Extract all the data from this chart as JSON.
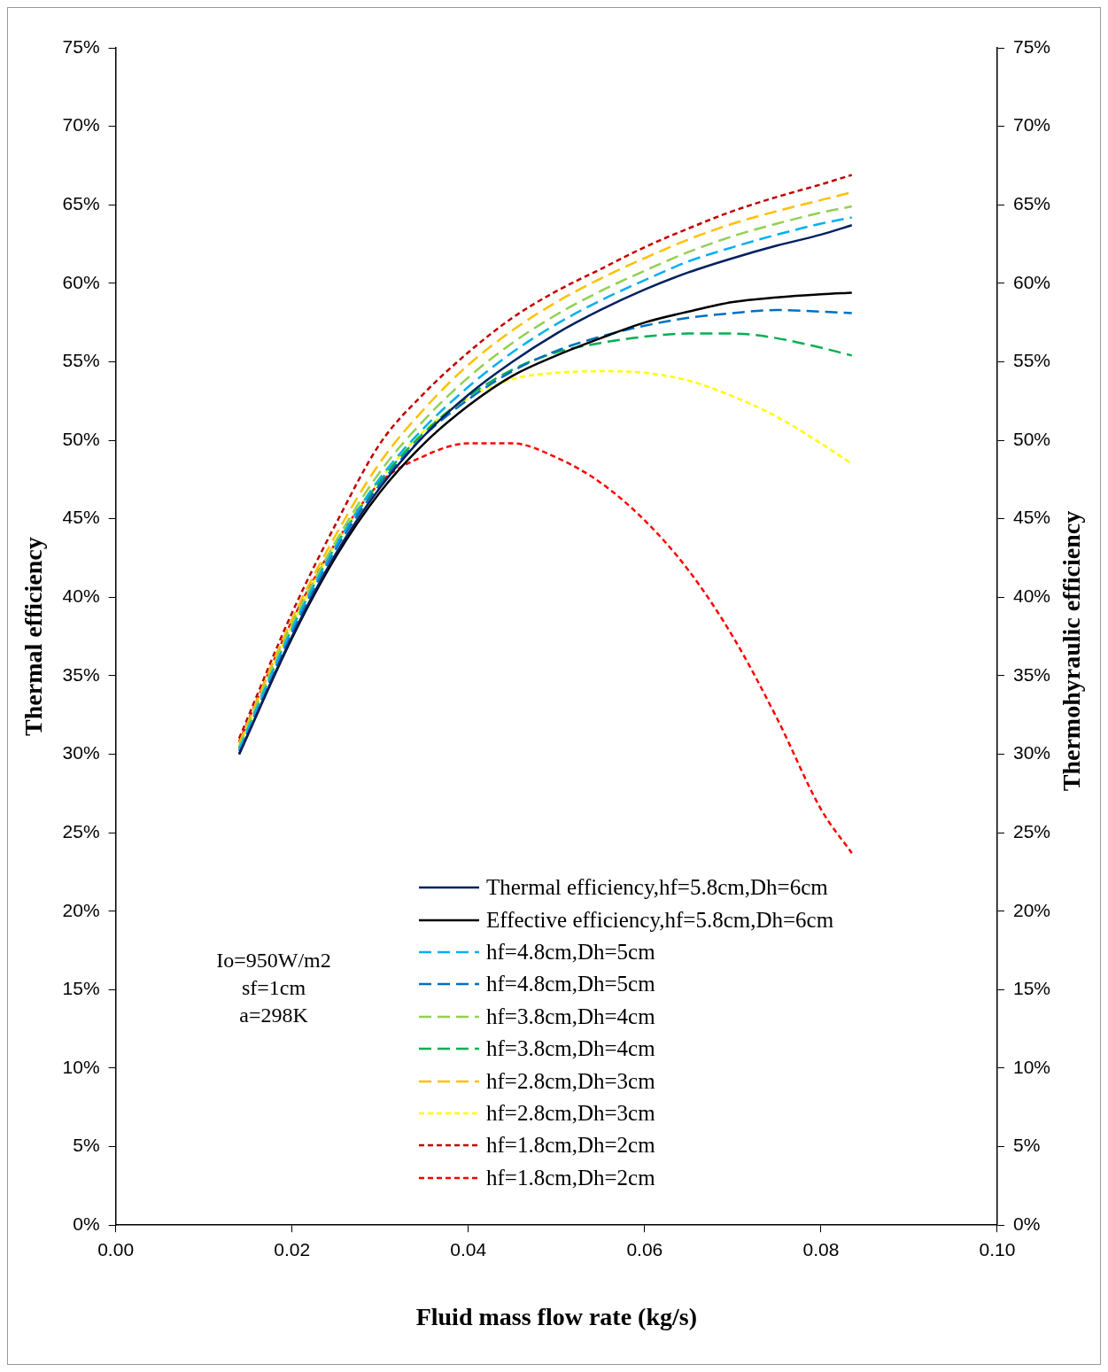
{
  "chart_data": {
    "type": "line",
    "xlabel": "Fluid mass flow rate (kg/s)",
    "ylabel": "Thermal efficiency",
    "y2label": "Thermohyraulic efficiency",
    "x": [
      0.014,
      0.02,
      0.025,
      0.03,
      0.035,
      0.04,
      0.045,
      0.05,
      0.055,
      0.06,
      0.065,
      0.07,
      0.075,
      0.08,
      0.0835
    ],
    "xlim": [
      0,
      0.1
    ],
    "xticks": [
      {
        "value": 0,
        "label": "0.00"
      },
      {
        "value": 0.02,
        "label": "0.02"
      },
      {
        "value": 0.04,
        "label": "0.04"
      },
      {
        "value": 0.06,
        "label": "0.06"
      },
      {
        "value": 0.08,
        "label": "0.08"
      },
      {
        "value": 0.1,
        "label": "0.10"
      }
    ],
    "ylim": [
      0,
      75
    ],
    "yticks": [
      {
        "value": 0,
        "label": "0%"
      },
      {
        "value": 5,
        "label": "5%"
      },
      {
        "value": 10,
        "label": "10%"
      },
      {
        "value": 15,
        "label": "15%"
      },
      {
        "value": 20,
        "label": "20%"
      },
      {
        "value": 25,
        "label": "25%"
      },
      {
        "value": 30,
        "label": "30%"
      },
      {
        "value": 35,
        "label": "35%"
      },
      {
        "value": 40,
        "label": "40%"
      },
      {
        "value": 45,
        "label": "45%"
      },
      {
        "value": 50,
        "label": "50%"
      },
      {
        "value": 55,
        "label": "55%"
      },
      {
        "value": 60,
        "label": "60%"
      },
      {
        "value": 65,
        "label": "65%"
      },
      {
        "value": 70,
        "label": "70%"
      },
      {
        "value": 75,
        "label": "75%"
      }
    ],
    "y2lim": [
      0,
      75
    ],
    "y2ticks": [
      {
        "value": 0,
        "label": "0%"
      },
      {
        "value": 5,
        "label": "5%"
      },
      {
        "value": 10,
        "label": "10%"
      },
      {
        "value": 15,
        "label": "15%"
      },
      {
        "value": 20,
        "label": "20%"
      },
      {
        "value": 25,
        "label": "25%"
      },
      {
        "value": 30,
        "label": "30%"
      },
      {
        "value": 35,
        "label": "35%"
      },
      {
        "value": 40,
        "label": "40%"
      },
      {
        "value": 45,
        "label": "45%"
      },
      {
        "value": 50,
        "label": "50%"
      },
      {
        "value": 55,
        "label": "55%"
      },
      {
        "value": 60,
        "label": "60%"
      },
      {
        "value": 65,
        "label": "65%"
      },
      {
        "value": 70,
        "label": "70%"
      },
      {
        "value": 75,
        "label": "75%"
      }
    ],
    "grid": false,
    "legend": "bottom right",
    "marker": "none",
    "annotations": [
      "Io=950W/m2",
      "sf=1cm",
      "a=298K"
    ],
    "series": [
      {
        "name": "Thermal efficiency,hf=5.8cm,Dh=6cm",
        "color": "#002060",
        "line_style": "solid",
        "values": [
          30.0,
          37.5,
          42.8,
          47.0,
          50.3,
          52.9,
          55.0,
          56.8,
          58.3,
          59.6,
          60.7,
          61.6,
          62.4,
          63.1,
          63.7
        ]
      },
      {
        "name": "Effective efficiency,hf=5.8cm,Dh=6cm",
        "color": "#000000",
        "line_style": "solid",
        "values": [
          30.0,
          37.4,
          42.6,
          46.7,
          49.8,
          52.2,
          54.1,
          55.4,
          56.5,
          57.5,
          58.2,
          58.8,
          59.1,
          59.3,
          59.4
        ]
      },
      {
        "name": "hf=4.8cm,Dh=5cm",
        "color": "#00b0f0",
        "line_style": "dashed",
        "values": [
          30.3,
          38.0,
          43.3,
          47.6,
          50.8,
          53.4,
          55.6,
          57.4,
          58.9,
          60.2,
          61.4,
          62.3,
          63.1,
          63.8,
          64.2
        ]
      },
      {
        "name": "hf=4.8cm,Dh=5cm",
        "color": "#0070c0",
        "line_style": "dashed",
        "values": [
          30.2,
          37.8,
          43.1,
          47.2,
          50.3,
          52.6,
          54.4,
          55.7,
          56.6,
          57.3,
          57.8,
          58.1,
          58.3,
          58.2,
          58.1
        ]
      },
      {
        "name": "hf=3.8cm,Dh=4cm",
        "color": "#92d050",
        "line_style": "dashed",
        "values": [
          30.5,
          38.3,
          43.6,
          48.0,
          51.3,
          54.0,
          56.2,
          58.0,
          59.5,
          60.8,
          62.0,
          63.0,
          63.8,
          64.5,
          64.9
        ]
      },
      {
        "name": "hf=3.8cm,Dh=4cm",
        "color": "#00b050",
        "line_style": "dashed",
        "values": [
          30.4,
          38.0,
          43.3,
          47.4,
          50.5,
          52.8,
          54.5,
          55.6,
          56.2,
          56.6,
          56.8,
          56.8,
          56.5,
          55.9,
          55.4
        ]
      },
      {
        "name": "hf=2.8cm,Dh=3cm",
        "color": "#ffc000",
        "line_style": "dashed",
        "values": [
          30.7,
          38.6,
          44.0,
          48.6,
          52.0,
          54.8,
          57.0,
          58.8,
          60.3,
          61.6,
          62.8,
          63.8,
          64.6,
          65.3,
          65.8
        ]
      },
      {
        "name": "hf=2.8cm,Dh=3cm",
        "color": "#ffff00",
        "line_style": "dotted",
        "values": [
          30.6,
          38.2,
          43.5,
          47.5,
          50.6,
          52.7,
          53.9,
          54.3,
          54.4,
          54.3,
          53.8,
          52.8,
          51.5,
          49.8,
          48.5
        ]
      },
      {
        "name": "hf=1.8cm,Dh=2cm",
        "color": "#c00000",
        "line_style": "dotted",
        "values": [
          31.0,
          39.0,
          44.7,
          49.8,
          53.0,
          55.6,
          57.8,
          59.5,
          60.9,
          62.3,
          63.5,
          64.6,
          65.5,
          66.3,
          66.9
        ]
      },
      {
        "name": "hf=1.8cm,Dh=2cm",
        "color": "#ff0000",
        "line_style": "dotted",
        "values": [
          30.8,
          38.5,
          43.5,
          47.3,
          49.0,
          49.8,
          49.8,
          48.9,
          47.3,
          44.9,
          41.7,
          37.5,
          32.3,
          26.5,
          23.7
        ]
      }
    ]
  }
}
